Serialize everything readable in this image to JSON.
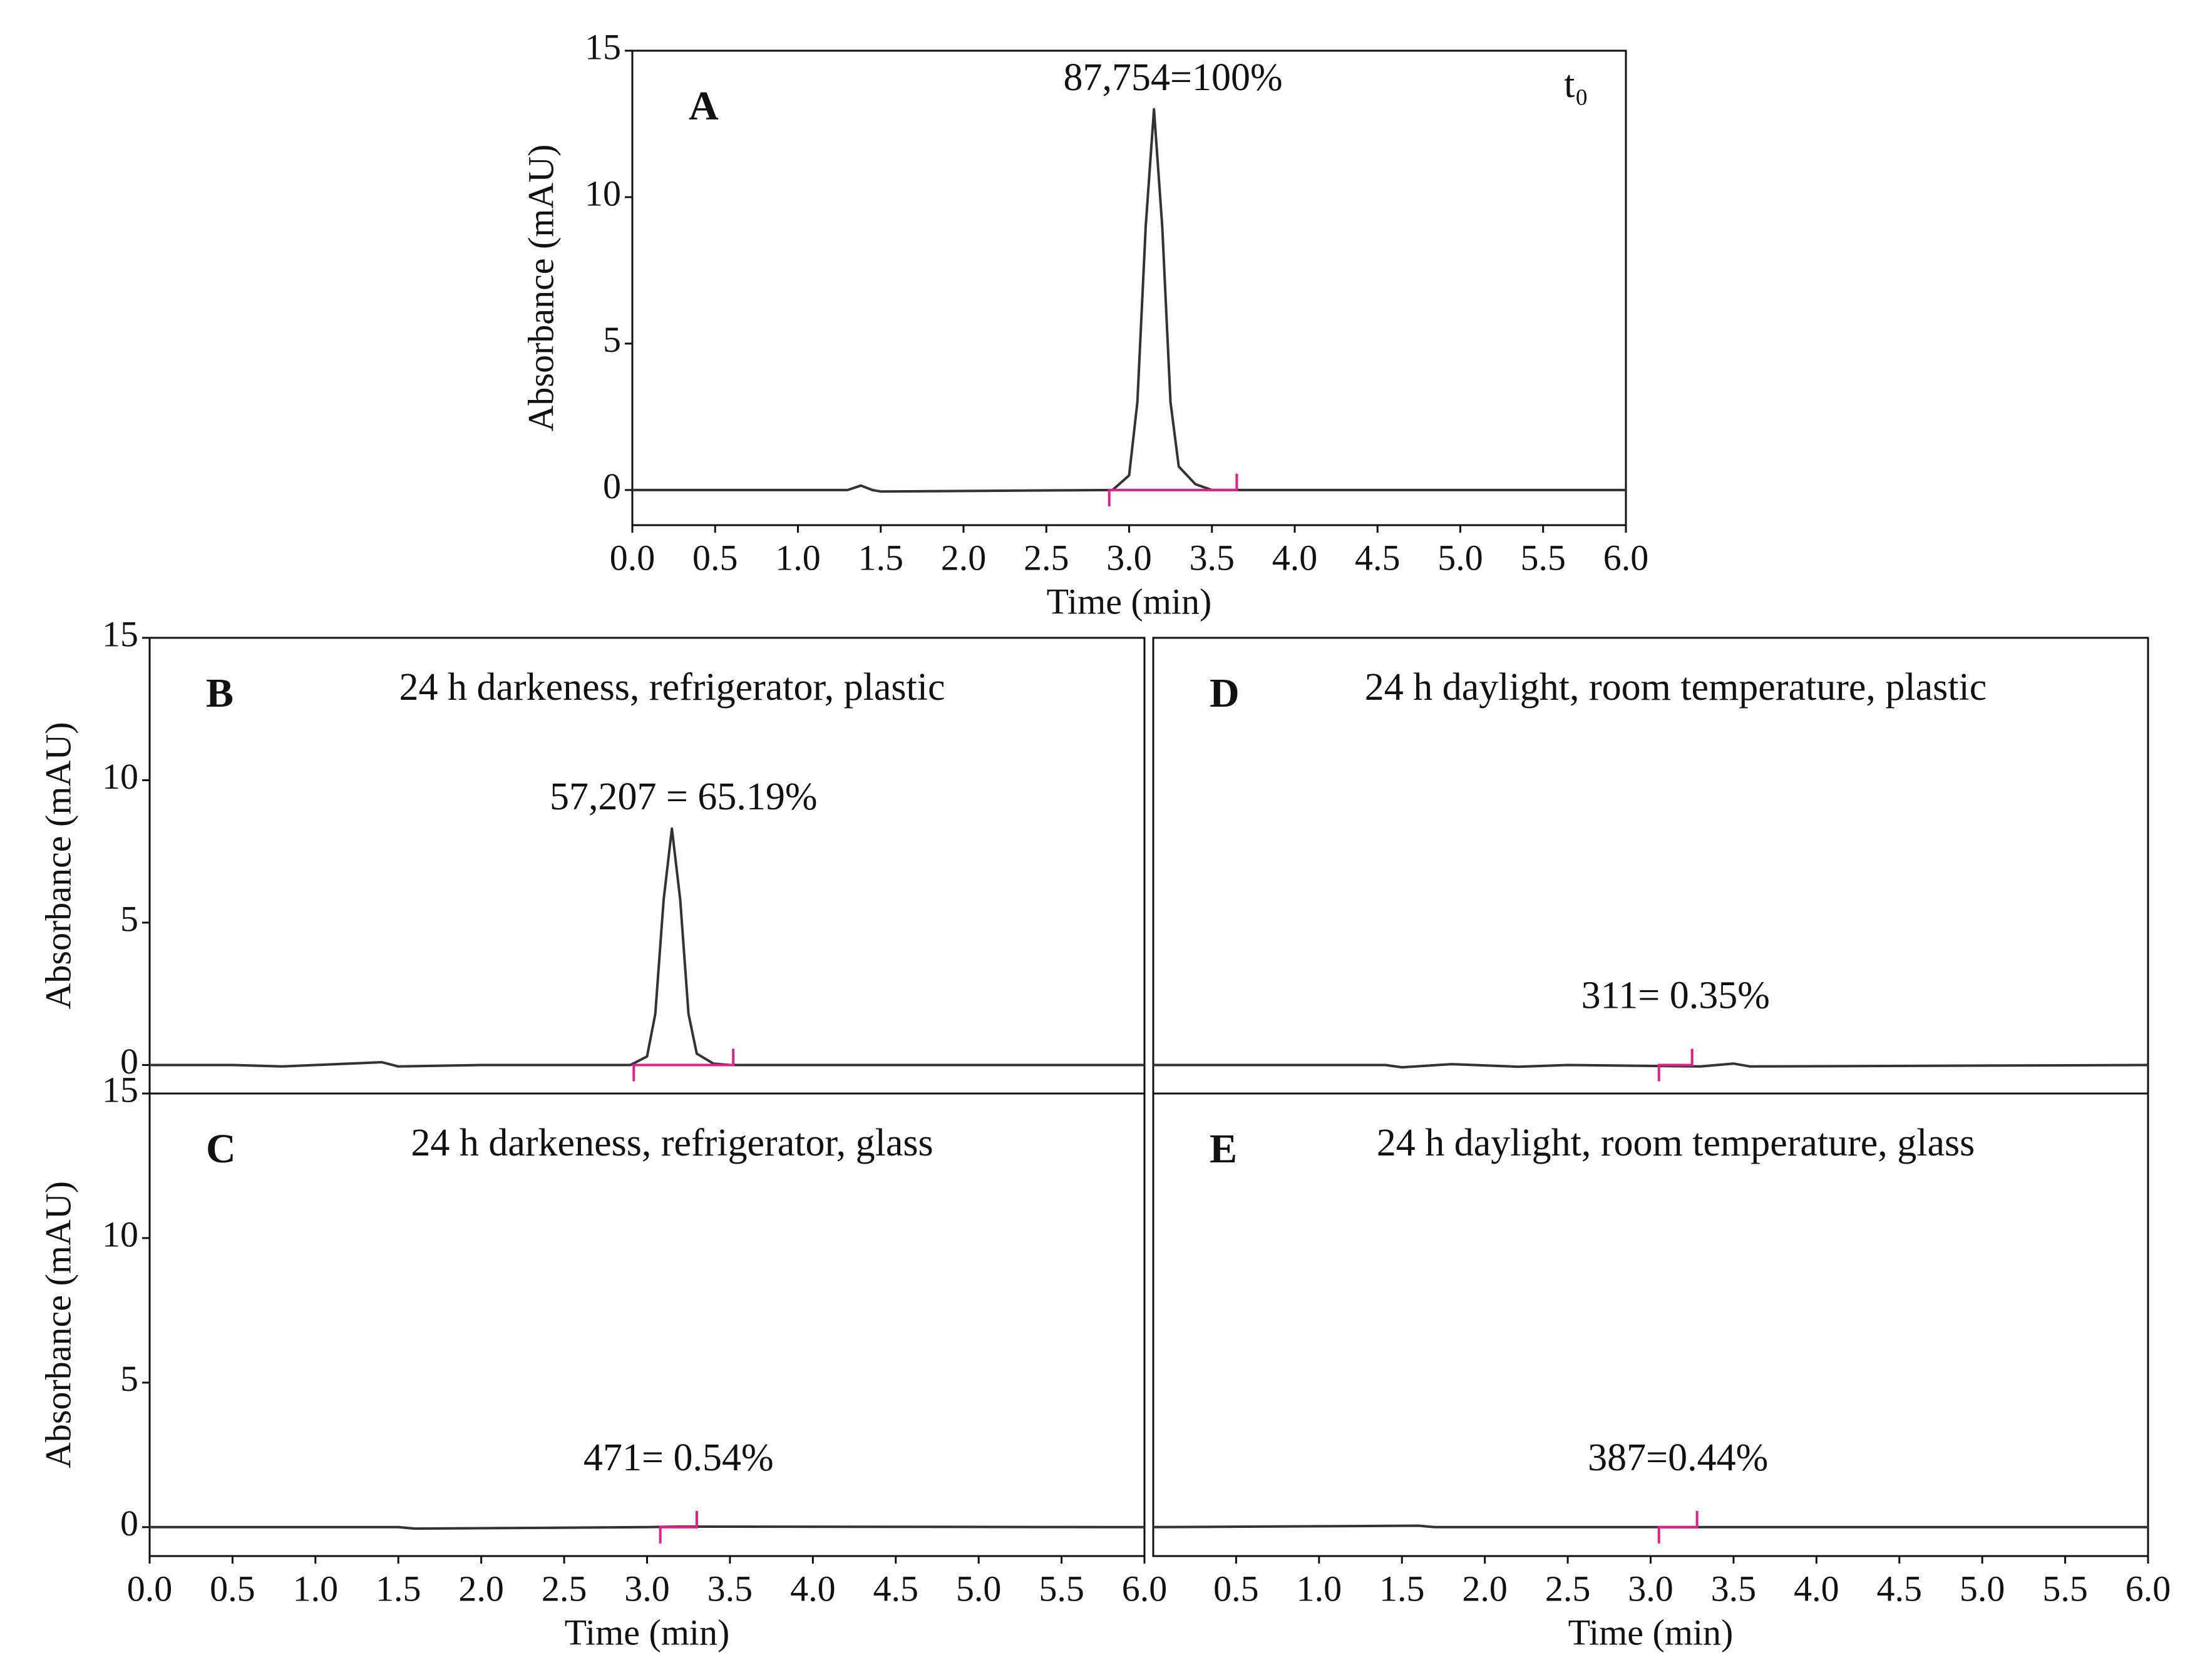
{
  "chart_data": [
    {
      "type": "line",
      "label": "A",
      "corner_label": "t₀",
      "annotation": "87,754=100%",
      "xlabel": "Time (min)",
      "ylabel": "Absorbance (mAU)",
      "x": [
        0,
        1.3,
        1.38,
        1.45,
        1.5,
        2.9,
        3.0,
        3.05,
        3.1,
        3.15,
        3.2,
        3.25,
        3.3,
        3.4,
        3.5,
        6.0
      ],
      "values": [
        0,
        0,
        0.15,
        0,
        -0.05,
        0,
        0.5,
        3,
        9,
        13,
        9,
        3,
        0.8,
        0.2,
        0,
        0
      ],
      "color": "#333333",
      "integration": [
        2.88,
        3.65
      ],
      "integration_color": "#e0218a",
      "xlim": [
        0,
        6
      ],
      "ylim": [
        -1.2,
        15
      ],
      "xticks": [
        {
          "value": 0,
          "label": "0.0"
        },
        0.5,
        {
          "value": 1,
          "label": "1.0"
        },
        1.5,
        {
          "value": 2,
          "label": "2.0"
        },
        2.5,
        {
          "value": 3,
          "label": "3.0"
        },
        3.5,
        {
          "value": 4,
          "label": "4.0"
        },
        4.5,
        {
          "value": 5,
          "label": "5.0"
        },
        5.5,
        {
          "value": 6,
          "label": "6.0"
        }
      ],
      "yticks": [
        0,
        5,
        10,
        15
      ]
    },
    {
      "type": "line",
      "label": "B",
      "subtitle": "24 h darkeness, refrigerator, plastic",
      "annotation": "57,207 = 65.19%",
      "ylabel": "Absorbance (mAU)",
      "x": [
        0,
        0.5,
        0.8,
        1.0,
        1.4,
        1.5,
        2.0,
        2.9,
        3.0,
        3.05,
        3.1,
        3.15,
        3.2,
        3.25,
        3.3,
        3.4,
        3.5,
        6.0
      ],
      "values": [
        0,
        0,
        -0.05,
        0,
        0.1,
        -0.05,
        0,
        0,
        0.3,
        1.8,
        5.8,
        8.3,
        5.8,
        1.8,
        0.4,
        0.05,
        0,
        0
      ],
      "color": "#333333",
      "integration": [
        2.92,
        3.52
      ],
      "integration_color": "#e0218a",
      "xlim": [
        0,
        6
      ],
      "ylim": [
        -1,
        15
      ],
      "yticks": [
        0,
        5,
        10,
        15
      ]
    },
    {
      "type": "line",
      "label": "C",
      "subtitle": "24 h darkeness, refrigerator, glass",
      "annotation": "471= 0.54%",
      "xlabel": "Time (min)",
      "ylabel": "Absorbance (mAU)",
      "x": [
        0,
        1.5,
        1.6,
        3.0,
        3.2,
        6.0
      ],
      "values": [
        0,
        0,
        -0.05,
        0,
        0.02,
        0
      ],
      "color": "#333333",
      "integration": [
        3.08,
        3.3
      ],
      "integration_color": "#e0218a",
      "xlim": [
        0,
        6
      ],
      "ylim": [
        -1,
        15
      ],
      "xticks": [
        {
          "value": 0,
          "label": "0.0"
        },
        0.5,
        {
          "value": 1,
          "label": "1.0"
        },
        1.5,
        {
          "value": 2,
          "label": "2.0"
        },
        2.5,
        {
          "value": 3,
          "label": "3.0"
        },
        3.5,
        {
          "value": 4,
          "label": "4.0"
        },
        4.5,
        {
          "value": 5,
          "label": "5.0"
        },
        5.5,
        {
          "value": 6,
          "label": "6.0"
        }
      ],
      "yticks": [
        0,
        5,
        10,
        15
      ]
    },
    {
      "type": "line",
      "label": "D",
      "subtitle": "24 h daylight, room temperature, plastic",
      "annotation": "311= 0.35%",
      "x": [
        0,
        1.4,
        1.5,
        1.8,
        2.2,
        2.5,
        3.3,
        3.5,
        3.6,
        6.0
      ],
      "values": [
        0,
        0,
        -0.08,
        0.03,
        -0.06,
        0,
        -0.05,
        0.05,
        -0.05,
        0
      ],
      "color": "#333333",
      "integration": [
        3.05,
        3.25
      ],
      "integration_color": "#e0218a",
      "xlim": [
        0,
        6
      ],
      "ylim": [
        -1,
        15
      ]
    },
    {
      "type": "line",
      "label": "E",
      "subtitle": "24 h daylight, room temperature, glass",
      "annotation": "387=0.44%",
      "xlabel": "Time (min)",
      "x": [
        0,
        1.6,
        1.7,
        6.0
      ],
      "values": [
        0,
        0.05,
        0,
        0
      ],
      "color": "#333333",
      "integration": [
        3.05,
        3.28
      ],
      "integration_color": "#e0218a",
      "xlim": [
        0,
        6
      ],
      "ylim": [
        -1,
        15
      ],
      "xticks": [
        0.5,
        {
          "value": 1,
          "label": "1.0"
        },
        1.5,
        {
          "value": 2,
          "label": "2.0"
        },
        2.5,
        {
          "value": 3,
          "label": "3.0"
        },
        3.5,
        {
          "value": 4,
          "label": "4.0"
        },
        4.5,
        {
          "value": 5,
          "label": "5.0"
        },
        5.5,
        {
          "value": 6,
          "label": "6.0"
        }
      ]
    }
  ]
}
